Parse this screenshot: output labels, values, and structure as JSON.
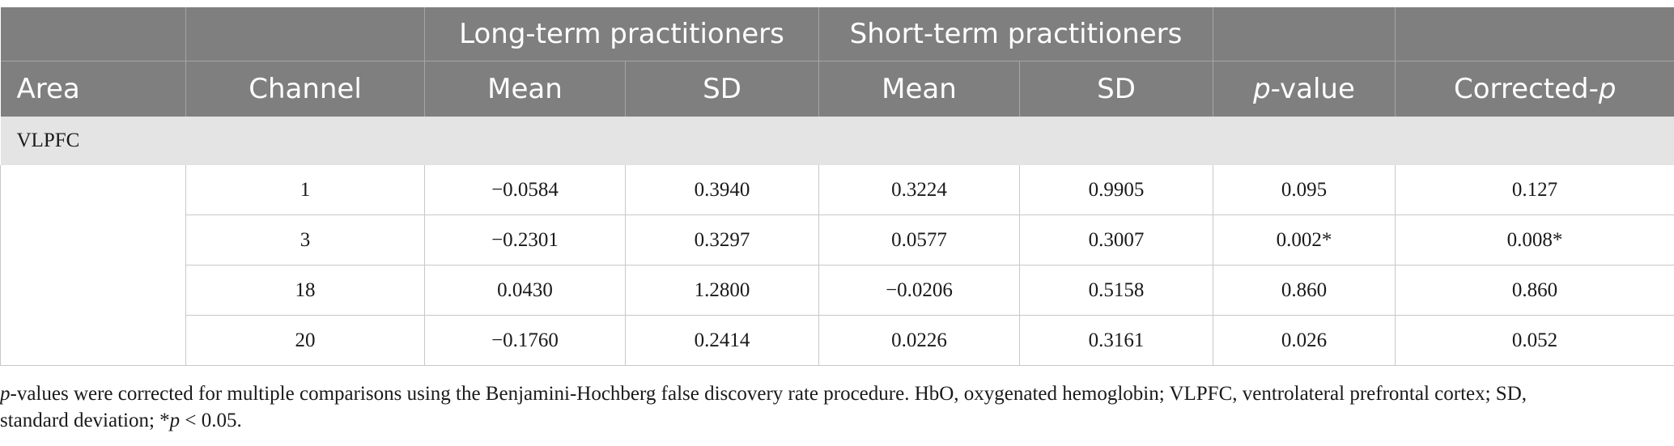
{
  "table": {
    "group_headers": {
      "long_term": "Long-term practitioners",
      "short_term": "Short-term practitioners"
    },
    "column_headers": {
      "area": "Area",
      "channel": "Channel",
      "lt_mean": "Mean",
      "lt_sd": "SD",
      "st_mean": "Mean",
      "st_sd": "SD",
      "p_italic": "p",
      "p_rest": "-value",
      "corr_prefix": "Corrected-",
      "corr_italic": "p"
    },
    "section_label": "VLPFC",
    "rows": [
      {
        "channel": "1",
        "lt_mean": "−0.0584",
        "lt_sd": "0.3940",
        "st_mean": "0.3224",
        "st_sd": "0.9905",
        "p": "0.095",
        "corrected_p": "0.127"
      },
      {
        "channel": "3",
        "lt_mean": "−0.2301",
        "lt_sd": "0.3297",
        "st_mean": "0.0577",
        "st_sd": "0.3007",
        "p": "0.002*",
        "corrected_p": "0.008*"
      },
      {
        "channel": "18",
        "lt_mean": "0.0430",
        "lt_sd": "1.2800",
        "st_mean": "−0.0206",
        "st_sd": "0.5158",
        "p": "0.860",
        "corrected_p": "0.860"
      },
      {
        "channel": "20",
        "lt_mean": "−0.1760",
        "lt_sd": "0.2414",
        "st_mean": "0.0226",
        "st_sd": "0.3161",
        "p": "0.026",
        "corrected_p": "0.052"
      }
    ]
  },
  "footnote": {
    "p_italic": "p",
    "line1_rest": "-values were corrected for multiple comparisons using the Benjamini-Hochberg false discovery rate procedure. HbO, oxygenated hemoglobin; VLPFC, ventrolateral prefrontal cortex; SD,",
    "line2_start": "standard deviation; *",
    "line2_italic": "p",
    "line2_end": " < 0.05."
  }
}
